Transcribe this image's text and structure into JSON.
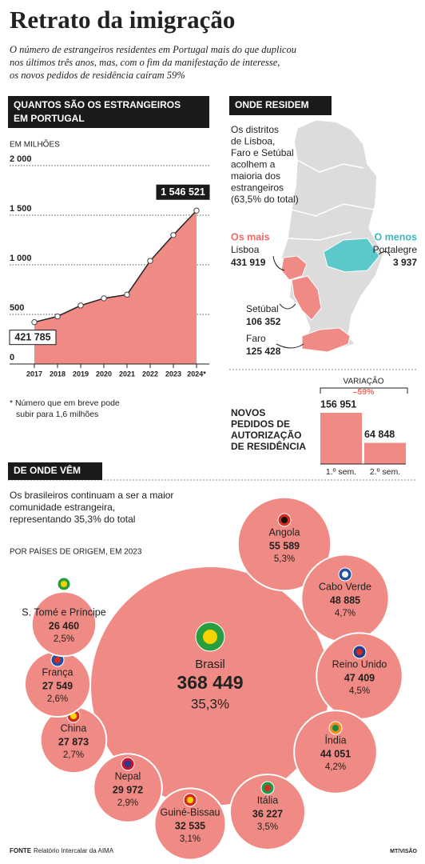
{
  "header": {
    "title": "Retrato da imigração",
    "subtitle_lines": [
      "O número de estrangeiros residentes em Portugal mais do que duplicou",
      "nos últimos três anos, mas, com o fim da manifestação de interesse,",
      "os novos pedidos de residência caíram 59%"
    ]
  },
  "chart_data": [
    {
      "type": "area",
      "title_lines": [
        "QUANTOS SÃO OS ESTRANGEIROS",
        "EM PORTUGAL"
      ],
      "unit": "EM MILHÕES",
      "color": "#f08a84",
      "line_color": "#222222",
      "categories": [
        "2017",
        "2018",
        "2019",
        "2020",
        "2021",
        "2022",
        "2023",
        "2024*"
      ],
      "values": [
        421.785,
        480,
        590,
        662,
        699,
        1040,
        1300,
        1546.521
      ],
      "value_labels": [
        "421 785",
        null,
        null,
        null,
        null,
        null,
        null,
        "1 546 521"
      ],
      "ylim": [
        0,
        2000
      ],
      "yticks": [
        0,
        500,
        {
          "value": 1000,
          "label": "1 000"
        },
        {
          "value": 1500,
          "label": "1 500"
        },
        {
          "value": 2000,
          "label": "2 000"
        }
      ],
      "grid": true,
      "note_lines": [
        "* Número que em breve pode",
        "subir para 1,6 milhões"
      ]
    },
    {
      "type": "bar",
      "title_lines": [
        "NOVOS",
        "PEDIDOS DE",
        "AUTORIZAÇÃO",
        "DE RESIDÊNCIA"
      ],
      "color": "#f08a84",
      "categories": [
        "1.º sem.",
        "2.º sem."
      ],
      "values": [
        156951,
        64848
      ],
      "value_labels": [
        "156 951",
        "64 848"
      ],
      "annotation": "VARIAÇÃO",
      "change_label": "–59%"
    },
    {
      "type": "bubble",
      "title": "DE ONDE VÊM",
      "text_lines": [
        "Os brasileiros continuam a ser a maior",
        "comunidade estrangeira,",
        "representando 35,3% do total"
      ],
      "subtitle": "POR PAÍSES DE ORIGEM, EM 2023",
      "color": "#f08a84",
      "categories": [
        "Brasil",
        "Angola",
        "Cabo Verde",
        "Reino Unido",
        "Índia",
        "Itália",
        "Guiné-Bissau",
        "Nepal",
        "China",
        "França",
        "S. Tomé e Príncipe"
      ],
      "values": [
        368449,
        55589,
        48885,
        47409,
        44051,
        36227,
        32535,
        29972,
        27873,
        27549,
        26460
      ],
      "value_labels": [
        "368 449",
        "55 589",
        "48 885",
        "47 409",
        "44 051",
        "36 227",
        "32 535",
        "29 972",
        "27 873",
        "27 549",
        "26 460"
      ],
      "shares": [
        35.3,
        5.3,
        4.7,
        4.5,
        4.2,
        3.5,
        3.1,
        2.9,
        2.7,
        2.6,
        2.5
      ],
      "share_labels": [
        "35,3%",
        "5,3%",
        "4,7%",
        "4,5%",
        "4,2%",
        "3,5%",
        "3,1%",
        "2,9%",
        "2,7%",
        "2,6%",
        "2,5%"
      ]
    }
  ],
  "map": {
    "title": "ONDE RESIDEM",
    "text_lines": [
      "Os distritos",
      "de Lisboa,",
      "Faro e Setúbal",
      "acolhem a",
      "maioria dos",
      "estrangeiros",
      "(63,5% do total)"
    ],
    "most": "Os mais",
    "least": "O menos",
    "places": [
      {
        "name": "Lisboa",
        "value": "431 919"
      },
      {
        "name": "Setúbal",
        "value": "106 352"
      },
      {
        "name": "Faro",
        "value": "125 428"
      },
      {
        "name": "Portalegre",
        "value": "3 937"
      }
    ]
  },
  "footer": {
    "label": "FONTE",
    "source": "Relatório Intercalar da AIMA",
    "credit": "MT/VISÃO"
  }
}
